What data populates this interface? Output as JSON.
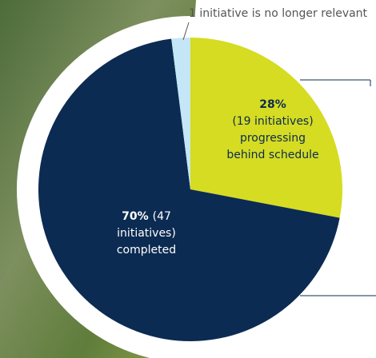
{
  "chart_data": {
    "type": "pie",
    "values": [
      28,
      70,
      2
    ],
    "value_labels": [
      "28%",
      "70%",
      null
    ],
    "labels": [
      [
        "(19 initiatives)",
        "progressing",
        "behind schedule"
      ],
      [
        "(47",
        "initiatives)",
        "completed"
      ],
      [
        "1 initiative is no longer relevant"
      ]
    ],
    "colors": [
      "#d5dc22",
      "#0c2b52",
      "#c5e6f6"
    ]
  }
}
